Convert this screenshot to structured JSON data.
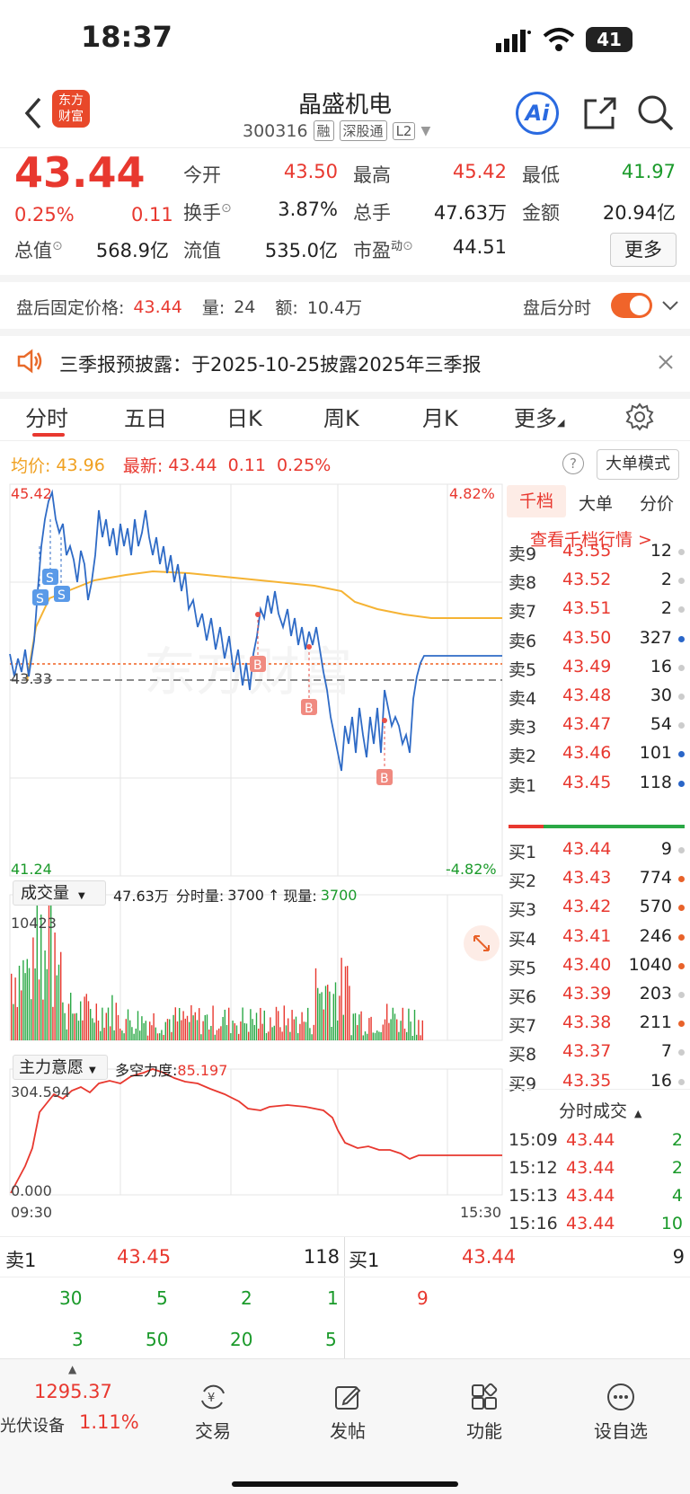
{
  "status_bar": {
    "time": "18:37",
    "battery": "41"
  },
  "header": {
    "title": "晶盛机电",
    "code": "300316",
    "tags": [
      "融",
      "深股通",
      "L2"
    ],
    "logo_line1": "东方",
    "logo_line2": "财富",
    "ai_label": "Ai"
  },
  "quote": {
    "price": "43.44",
    "change_pct": "0.25%",
    "change": "0.11",
    "open_label": "今开",
    "open": "43.50",
    "high_label": "最高",
    "high": "45.42",
    "low_label": "最低",
    "low": "41.97",
    "turnover_label": "换手",
    "turnover": "3.87%",
    "volume_label": "总手",
    "volume": "47.63万",
    "amount_label": "金额",
    "amount": "20.94亿",
    "mktcap_label": "总值",
    "mktcap": "568.9亿",
    "float_label": "流值",
    "float": "535.0亿",
    "pe_label": "市盈",
    "pe_sup": "动",
    "pe": "44.51",
    "more": "更多"
  },
  "after_hours": {
    "label": "盘后固定价格:",
    "price": "43.44",
    "vol_label": "量:",
    "vol": "24",
    "amt_label": "额:",
    "amt": "10.4万",
    "toggle_label": "盘后分时",
    "toggle_on": true
  },
  "notice": {
    "text": "三季报预披露：于2025-10-25披露2025年三季报"
  },
  "tabs": [
    "分时",
    "五日",
    "日K",
    "周K",
    "月K",
    "更多"
  ],
  "chart_info": {
    "avg_label": "均价:",
    "avg": "43.96",
    "latest_label": "最新:",
    "latest": "43.44",
    "chg": "0.11",
    "chg_pct": "0.25%",
    "big_order_mode": "大单模式",
    "y_high": "45.42",
    "y_low": "41.24",
    "y_mid": "43.33",
    "pct_high": "4.82%",
    "pct_low": "-4.82%",
    "watermark": "东方财富"
  },
  "volume_panel": {
    "dropdown": "成交量",
    "total": "47.63万",
    "tick_label": "分时量:",
    "tick": "3700",
    "now_label": "现量:",
    "now": "3700",
    "max": "10423"
  },
  "flow_panel": {
    "dropdown": "主力意愿",
    "label": "多空力度:",
    "value": "85.197",
    "max": "304.594",
    "min": "0.000",
    "t_start": "09:30",
    "t_end": "15:30"
  },
  "orderbook": {
    "tabs": [
      "千档",
      "大单",
      "分价"
    ],
    "link": "查看千档行情 >",
    "asks": [
      {
        "label": "卖9",
        "price": "43.55",
        "vol": "12"
      },
      {
        "label": "卖8",
        "price": "43.52",
        "vol": "2"
      },
      {
        "label": "卖7",
        "price": "43.51",
        "vol": "2"
      },
      {
        "label": "卖6",
        "price": "43.50",
        "vol": "327"
      },
      {
        "label": "卖5",
        "price": "43.49",
        "vol": "16"
      },
      {
        "label": "卖4",
        "price": "43.48",
        "vol": "30"
      },
      {
        "label": "卖3",
        "price": "43.47",
        "vol": "54"
      },
      {
        "label": "卖2",
        "price": "43.46",
        "vol": "101"
      },
      {
        "label": "卖1",
        "price": "43.45",
        "vol": "118"
      }
    ],
    "bids": [
      {
        "label": "买1",
        "price": "43.44",
        "vol": "9"
      },
      {
        "label": "买2",
        "price": "43.43",
        "vol": "774"
      },
      {
        "label": "买3",
        "price": "43.42",
        "vol": "570"
      },
      {
        "label": "买4",
        "price": "43.41",
        "vol": "246"
      },
      {
        "label": "买5",
        "price": "43.40",
        "vol": "1040"
      },
      {
        "label": "买6",
        "price": "43.39",
        "vol": "203"
      },
      {
        "label": "买7",
        "price": "43.38",
        "vol": "211"
      },
      {
        "label": "买8",
        "price": "43.37",
        "vol": "7"
      },
      {
        "label": "买9",
        "price": "43.35",
        "vol": "16"
      }
    ],
    "ticks_title": "分时成交",
    "ticks": [
      {
        "time": "15:09",
        "price": "43.44",
        "vol": "2"
      },
      {
        "time": "15:12",
        "price": "43.44",
        "vol": "2"
      },
      {
        "time": "15:13",
        "price": "43.44",
        "vol": "4"
      },
      {
        "time": "15:16",
        "price": "43.44",
        "vol": "10"
      }
    ]
  },
  "bottom_panel": {
    "sell1_label": "卖1",
    "sell1_price": "43.45",
    "sell1_vol": "118",
    "buy1_label": "买1",
    "buy1_price": "43.44",
    "buy1_vol": "9",
    "row1": [
      "30",
      "5",
      "2",
      "1"
    ],
    "row2": [
      "3",
      "50",
      "20",
      "5"
    ],
    "buy_queue": [
      "9"
    ]
  },
  "nav": {
    "sector_value": "1295.37",
    "sector_name": "光伏设备",
    "sector_pct": "1.11%",
    "items": [
      "交易",
      "发帖",
      "功能",
      "设自选"
    ]
  }
}
